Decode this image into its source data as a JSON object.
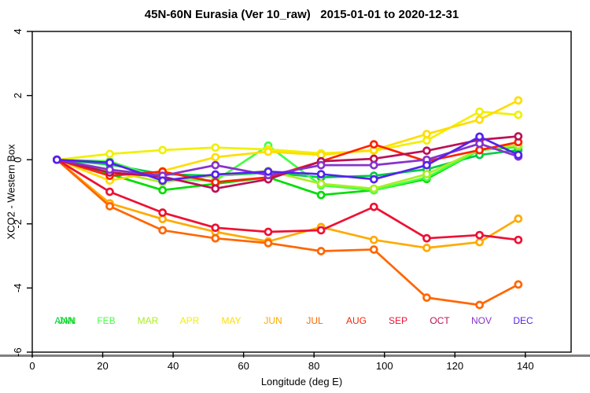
{
  "chart_data": {
    "type": "line",
    "title": "45N-60N Eurasia (Ver 10_raw)   2015-01-01 to 2020-12-31",
    "xlabel": "Longitude (deg E)",
    "ylabel": "XCO2 - Western Box",
    "xlim": [
      0,
      153
    ],
    "ylim": [
      -6,
      4
    ],
    "x_ticks": [
      0,
      20,
      40,
      60,
      80,
      100,
      120,
      140
    ],
    "y_ticks": [
      -6,
      -4,
      -2,
      0,
      2,
      4
    ],
    "grid": "off",
    "marker": "open-circle",
    "x": [
      7,
      22,
      37,
      52,
      67,
      82,
      97,
      112,
      127,
      138
    ],
    "series": [
      {
        "name": "ANN",
        "color": "#00CC44",
        "values": [
          0,
          -0.15,
          -0.45,
          -0.5,
          -0.4,
          -0.55,
          -0.5,
          -0.3,
          0.15,
          0.3
        ]
      },
      {
        "name": "JAN",
        "color": "#00DD00",
        "values": [
          0,
          -0.45,
          -0.95,
          -0.75,
          -0.55,
          -1.1,
          -0.95,
          -0.6,
          0.3,
          0.4
        ]
      },
      {
        "name": "FEB",
        "color": "#44FF44",
        "values": [
          0,
          -0.05,
          -0.6,
          -0.65,
          0.44,
          -0.8,
          -0.95,
          -0.55,
          0.3,
          0.42
        ]
      },
      {
        "name": "MAR",
        "color": "#AAEE22",
        "values": [
          0,
          -0.35,
          -0.7,
          -0.5,
          -0.35,
          -0.75,
          -0.9,
          -0.45,
          0.32,
          0.45
        ]
      },
      {
        "name": "APR",
        "color": "#F0F000",
        "values": [
          0,
          0.18,
          0.3,
          0.38,
          0.32,
          0.2,
          0.28,
          0.6,
          1.5,
          1.4
        ]
      },
      {
        "name": "MAY",
        "color": "#FFDD00",
        "values": [
          0,
          -0.65,
          -0.35,
          0.08,
          0.25,
          0.15,
          0.3,
          0.8,
          1.25,
          1.85
        ]
      },
      {
        "name": "JUN",
        "color": "#FFAA00",
        "values": [
          0,
          -1.36,
          -1.85,
          -2.25,
          -2.55,
          -2.1,
          -2.5,
          -2.75,
          -2.57,
          -1.84
        ]
      },
      {
        "name": "JUL",
        "color": "#FF6600",
        "values": [
          0,
          -1.45,
          -2.2,
          -2.45,
          -2.6,
          -2.85,
          -2.8,
          -4.3,
          -4.53,
          -3.89
        ]
      },
      {
        "name": "AUG",
        "color": "#FF2200",
        "values": [
          0,
          -0.5,
          -0.37,
          -0.7,
          -0.55,
          -0.05,
          0.48,
          -0.05,
          0.3,
          0.55
        ]
      },
      {
        "name": "SEP",
        "color": "#EE1133",
        "values": [
          0,
          -1.0,
          -1.65,
          -2.12,
          -2.25,
          -2.2,
          -1.47,
          -2.45,
          -2.35,
          -2.5
        ]
      },
      {
        "name": "OCT",
        "color": "#BB1155",
        "values": [
          0,
          -0.4,
          -0.53,
          -0.9,
          -0.61,
          -0.05,
          0.03,
          0.28,
          0.62,
          0.73
        ]
      },
      {
        "name": "NOV",
        "color": "#8833CC",
        "values": [
          0,
          -0.31,
          -0.5,
          -0.17,
          -0.48,
          -0.17,
          -0.17,
          0.0,
          0.5,
          0.1
        ]
      },
      {
        "name": "DEC",
        "color": "#5522EE",
        "values": [
          0,
          -0.09,
          -0.65,
          -0.46,
          -0.37,
          -0.45,
          -0.61,
          -0.17,
          0.72,
          0.15
        ]
      }
    ],
    "legend": {
      "position": "bottom-inside",
      "entries": [
        {
          "label": "ANN",
          "color": "#00CC44",
          "slot": 0,
          "dx": 0
        },
        {
          "label": "JAN",
          "color": "#00DD00",
          "slot": 0,
          "dx": 3
        },
        {
          "label": "FEB",
          "color": "#44FF44",
          "slot": 1,
          "dx": 0
        },
        {
          "label": "MAR",
          "color": "#AAEE22",
          "slot": 2,
          "dx": 0
        },
        {
          "label": "APR",
          "color": "#F0F000",
          "slot": 3,
          "dx": 0
        },
        {
          "label": "MAY",
          "color": "#FFDD00",
          "slot": 4,
          "dx": 0
        },
        {
          "label": "JUN",
          "color": "#FFAA00",
          "slot": 5,
          "dx": 0
        },
        {
          "label": "JUL",
          "color": "#FF6600",
          "slot": 6,
          "dx": 0
        },
        {
          "label": "AUG",
          "color": "#FF2200",
          "slot": 7,
          "dx": 0
        },
        {
          "label": "SEP",
          "color": "#EE1133",
          "slot": 8,
          "dx": 0
        },
        {
          "label": "OCT",
          "color": "#BB1155",
          "slot": 9,
          "dx": 0
        },
        {
          "label": "NOV",
          "color": "#8833CC",
          "slot": 10,
          "dx": 0
        },
        {
          "label": "DEC",
          "color": "#5522EE",
          "slot": 11,
          "dx": 0
        }
      ]
    }
  }
}
